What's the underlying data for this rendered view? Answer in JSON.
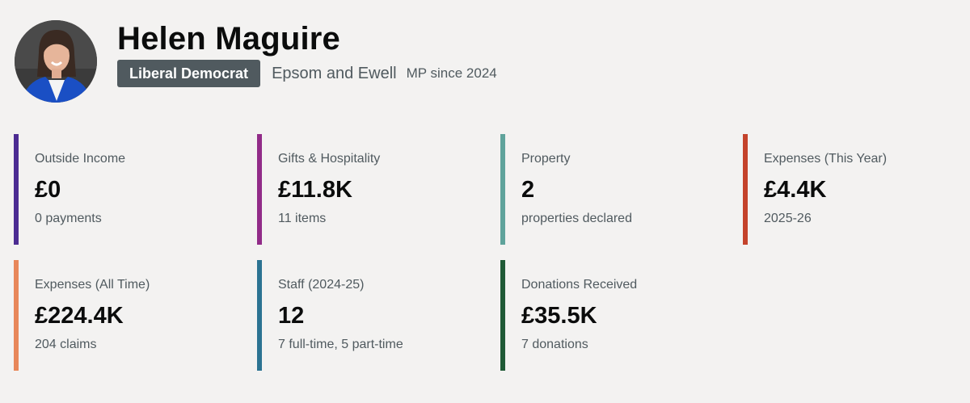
{
  "profile": {
    "name": "Helen Maguire",
    "party": "Liberal Democrat",
    "constituency": "Epsom and Ewell",
    "since": "MP since 2024",
    "party_color": "#505a5f"
  },
  "cards": [
    {
      "label": "Outside Income",
      "value": "£0",
      "sub": "0 payments",
      "color": "#4c2c92"
    },
    {
      "label": "Gifts & Hospitality",
      "value": "£11.8K",
      "sub": "11 items",
      "color": "#912b88"
    },
    {
      "label": "Property",
      "value": "2",
      "sub": "properties declared",
      "color": "#5fa39b"
    },
    {
      "label": "Expenses (This Year)",
      "value": "£4.4K",
      "sub": "2025-26",
      "color": "#c4432b"
    },
    {
      "label": "Expenses (All Time)",
      "value": "£224.4K",
      "sub": "204 claims",
      "color": "#e8875a"
    },
    {
      "label": "Staff (2024-25)",
      "value": "12",
      "sub": "7 full-time, 5 part-time",
      "color": "#2b7392"
    },
    {
      "label": "Donations Received",
      "value": "£35.5K",
      "sub": "7 donations",
      "color": "#1f5a36"
    }
  ]
}
